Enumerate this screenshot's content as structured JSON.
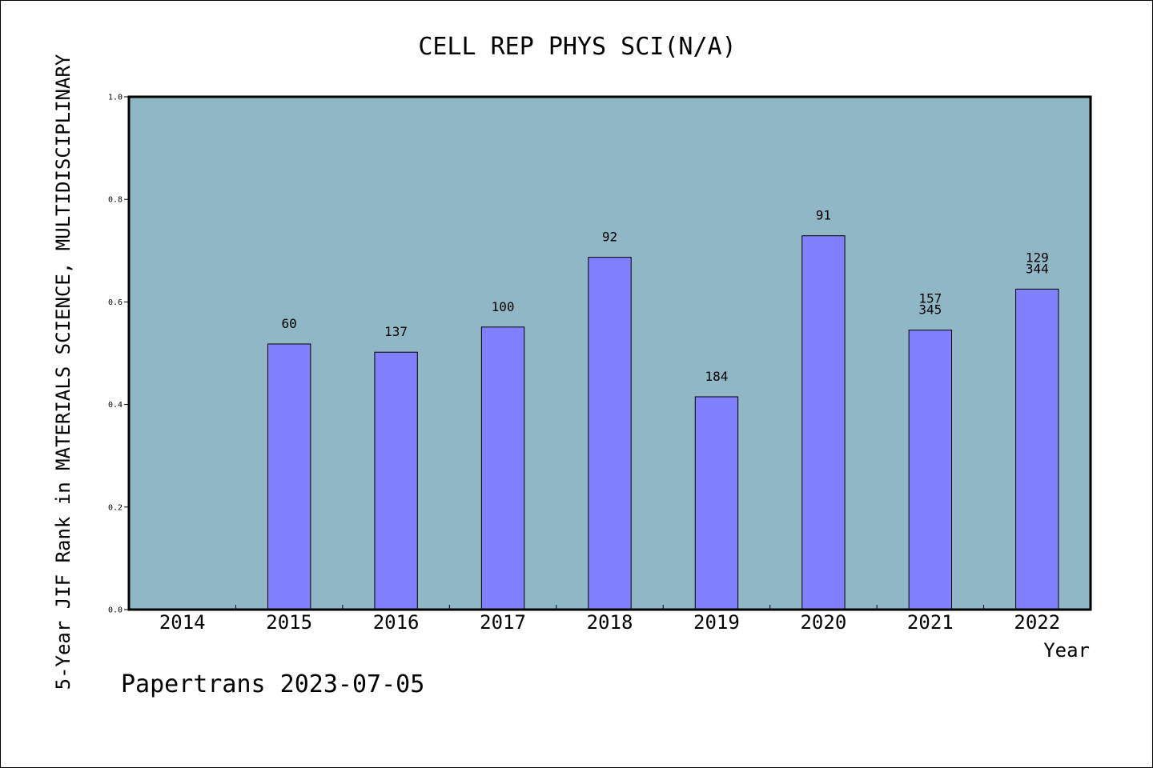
{
  "chart_data": {
    "type": "bar",
    "title": "CELL REP PHYS SCI(N/A)",
    "xlabel": "Year",
    "ylabel": "5-Year JIF Rank in MATERIALS SCIENCE, MULTIDISCIPLINARY",
    "ylim": [
      0,
      1
    ],
    "yticks": [
      "0.0",
      "0.2",
      "0.4",
      "0.6",
      "0.8",
      "1.0"
    ],
    "categories": [
      "2014",
      "2015",
      "2016",
      "2017",
      "2018",
      "2019",
      "2020",
      "2021",
      "2022"
    ],
    "values": [
      null,
      0.518,
      0.502,
      0.551,
      0.687,
      0.415,
      0.729,
      0.545,
      0.625
    ],
    "bar_labels": [
      [],
      [
        "60"
      ],
      [
        "137"
      ],
      [
        "100"
      ],
      [
        "92"
      ],
      [
        "184"
      ],
      [
        "91"
      ],
      [
        "157",
        "345"
      ],
      [
        "129",
        "344"
      ]
    ],
    "grid": false,
    "colors": {
      "plot_background": "#8fb7c6",
      "bar": "#8080ff",
      "bar_edge": "#000000"
    }
  },
  "footer": "Papertrans 2023-07-05"
}
